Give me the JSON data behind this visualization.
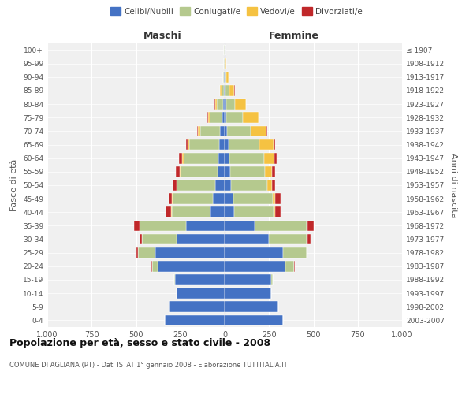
{
  "age_groups": [
    "0-4",
    "5-9",
    "10-14",
    "15-19",
    "20-24",
    "25-29",
    "30-34",
    "35-39",
    "40-44",
    "45-49",
    "50-54",
    "55-59",
    "60-64",
    "65-69",
    "70-74",
    "75-79",
    "80-84",
    "85-89",
    "90-94",
    "95-99",
    "100+"
  ],
  "birth_years": [
    "2003-2007",
    "1998-2002",
    "1993-1997",
    "1988-1992",
    "1983-1987",
    "1978-1982",
    "1973-1977",
    "1968-1972",
    "1963-1967",
    "1958-1962",
    "1953-1957",
    "1948-1952",
    "1943-1947",
    "1938-1942",
    "1933-1937",
    "1928-1932",
    "1923-1927",
    "1918-1922",
    "1913-1917",
    "1908-1912",
    "≤ 1907"
  ],
  "maschi": {
    "celibi": [
      340,
      310,
      270,
      280,
      380,
      390,
      270,
      220,
      80,
      65,
      55,
      40,
      35,
      30,
      25,
      15,
      10,
      5,
      3,
      2,
      2
    ],
    "coniugati": [
      0,
      1,
      2,
      5,
      30,
      100,
      195,
      260,
      220,
      230,
      215,
      210,
      195,
      170,
      115,
      70,
      35,
      15,
      5,
      2,
      1
    ],
    "vedovi": [
      0,
      0,
      0,
      0,
      1,
      1,
      2,
      2,
      2,
      2,
      3,
      5,
      8,
      10,
      10,
      8,
      10,
      5,
      2,
      0,
      0
    ],
    "divorziati": [
      0,
      0,
      0,
      1,
      2,
      5,
      15,
      30,
      30,
      20,
      20,
      20,
      18,
      10,
      5,
      3,
      2,
      2,
      0,
      0,
      0
    ]
  },
  "femmine": {
    "nubili": [
      330,
      300,
      260,
      260,
      340,
      330,
      250,
      170,
      55,
      50,
      35,
      30,
      25,
      20,
      15,
      10,
      8,
      5,
      5,
      3,
      2
    ],
    "coniugate": [
      0,
      1,
      2,
      10,
      50,
      130,
      210,
      290,
      220,
      220,
      205,
      195,
      195,
      175,
      130,
      90,
      50,
      20,
      5,
      2,
      1
    ],
    "vedove": [
      0,
      0,
      0,
      1,
      2,
      3,
      5,
      8,
      10,
      15,
      25,
      40,
      60,
      80,
      90,
      90,
      60,
      30,
      10,
      3,
      1
    ],
    "divorziate": [
      0,
      0,
      0,
      1,
      2,
      5,
      20,
      35,
      30,
      30,
      20,
      20,
      15,
      10,
      5,
      5,
      3,
      2,
      0,
      0,
      0
    ]
  },
  "colors": {
    "celibi": "#4472C4",
    "coniugati": "#b5c98e",
    "vedovi": "#f5c242",
    "divorziati": "#c0282a"
  },
  "xlim": 1000,
  "title": "Popolazione per età, sesso e stato civile - 2008",
  "subtitle": "COMUNE DI AGLIANA (PT) - Dati ISTAT 1° gennaio 2008 - Elaborazione TUTTITALIA.IT",
  "ylabel_left": "Fasce di età",
  "ylabel_right": "Anni di nascita",
  "xlabel_maschi": "Maschi",
  "xlabel_femmine": "Femmine",
  "legend_labels": [
    "Celibi/Nubili",
    "Coniugati/e",
    "Vedovi/e",
    "Divorziati/e"
  ],
  "bg_color": "#ffffff",
  "plot_bg": "#f0f0f0",
  "xticks": [
    -1000,
    -750,
    -500,
    -250,
    0,
    250,
    500,
    750,
    1000
  ],
  "xticklabels": [
    "1.000",
    "750",
    "500",
    "250",
    "0",
    "250",
    "500",
    "750",
    "1.000"
  ]
}
